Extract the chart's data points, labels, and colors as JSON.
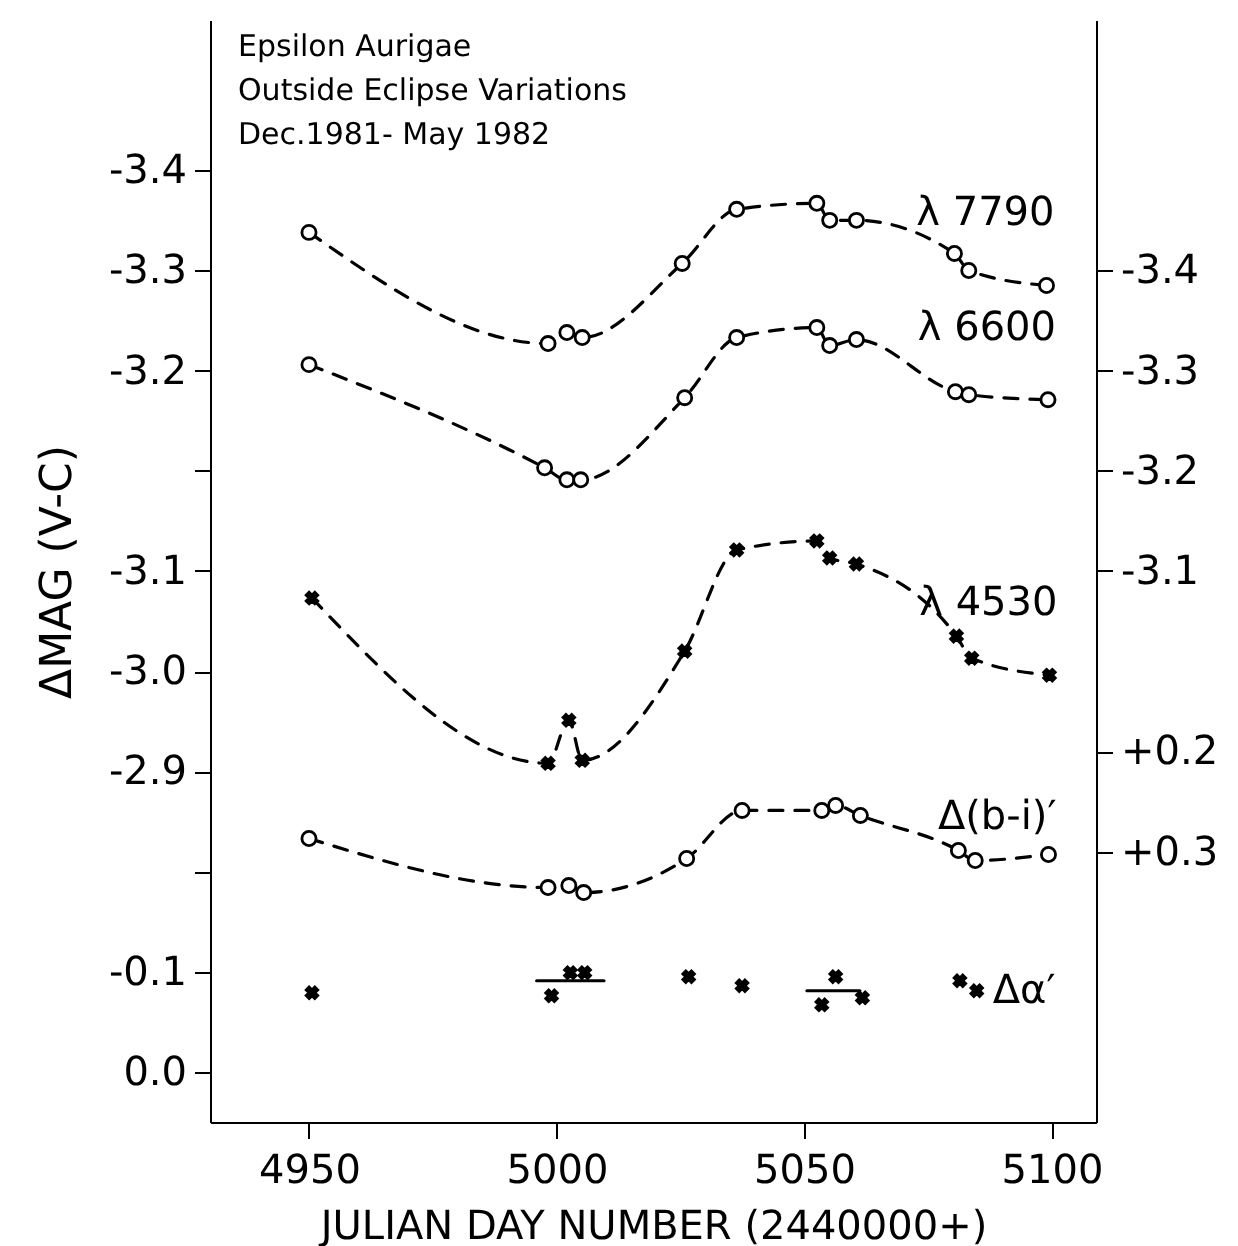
{
  "chart_data": [
    {
      "type": "line",
      "title": "Epsilon Aurigae",
      "subtitle": "Outside Eclipse Variations",
      "annotations": [
        "Dec.1981- May 1982"
      ],
      "xlabel": "JULIAN DAY NUMBER (2440000+)",
      "ylabel": "ΔMAG (V-C)",
      "xlim": [
        4930,
        5109
      ],
      "xticks": [
        4950,
        5000,
        5050,
        5100
      ],
      "ylim": [
        -2.45,
        -3.55
      ],
      "yticks": [
        -3.4,
        -3.3,
        -3.2,
        {
          "value": -3.1,
          "label": null
        }
      ],
      "y2lim": [
        -2.55,
        -3.65
      ],
      "y2ticks": [
        -3.4,
        -3.3,
        -3.2,
        -3.1
      ],
      "y3lim": [
        -2.55,
        -3.65
      ],
      "y3ticks": [
        -3.1,
        {
          "value": -3.0,
          "label": "-3.0"
        },
        -2.9,
        {
          "value": -2.8,
          "label": null
        }
      ],
      "marker": "circle",
      "line_style": "dashed",
      "series": [
        {
          "name": "λ 7790",
          "color": "#000000",
          "x": [
            4950,
            4998.3,
            5002.1,
            5005.2,
            5025.4,
            5036.4,
            5052.6,
            5055.2,
            5060.6,
            5080.4,
            5083.3,
            5099
          ],
          "values": [
            -3.338,
            -3.227,
            -3.238,
            -3.233,
            -3.307,
            -3.361,
            -3.367,
            -3.35,
            -3.35,
            -3.317,
            -3.3,
            -3.285
          ]
        },
        {
          "name": "λ 6600",
          "axis": "y2",
          "color": "#000000",
          "x": [
            4950,
            4997.6,
            5002.1,
            5004.9,
            5025.9,
            5036.4,
            5052.6,
            5055.2,
            5060.6,
            5080.6,
            5083.3,
            5099.3
          ],
          "values": [
            -3.306,
            -3.203,
            -3.191,
            -3.191,
            -3.273,
            -3.333,
            -3.343,
            -3.325,
            -3.331,
            -3.279,
            -3.276,
            -3.271
          ]
        },
        {
          "name": "λ 4530",
          "axis": "y3",
          "color": "#000000",
          "marker": "cross",
          "x": [
            4950.6,
            4998.3,
            5002.5,
            5005.2,
            5025.9,
            5036.4,
            5052.6,
            5055.2,
            5060.6,
            5080.8,
            5083.9,
            5099.6
          ],
          "values": [
            -3.073,
            -2.908,
            -2.951,
            -2.911,
            -3.02,
            -3.121,
            -3.13,
            -3.113,
            -3.107,
            -3.035,
            -3.013,
            -2.996
          ]
        }
      ]
    },
    {
      "type": "line",
      "tick_labels": "y",
      "xlim": [
        4930,
        5109
      ],
      "ylim": [
        0.05,
        -1.05
      ],
      "yticks": [
        -0.1,
        {
          "value": 0,
          "label": "0.0"
        }
      ],
      "y2lim": [
        0.57,
        -0.53
      ],
      "y2ticks": [
        {
          "value": 0.2,
          "label": "+0.2"
        },
        {
          "value": 0.3,
          "label": "+0.3"
        }
      ],
      "series": [
        {
          "name": "Δ(b-i)′",
          "axis": "y2",
          "color": "#000000",
          "marker": "circle",
          "line_style": "dashed",
          "x": [
            4950,
            4998.3,
            5002.5,
            5005.5,
            5026.3,
            5037.5,
            5053.6,
            5056.4,
            5061.4,
            5081.2,
            5084.6,
            5099.4
          ],
          "values": [
            0.287,
            0.336,
            0.334,
            0.341,
            0.307,
            0.259,
            0.259,
            0.254,
            0.264,
            0.299,
            0.309,
            0.303
          ]
        },
        {
          "name": "Δα′",
          "type": "scatter",
          "color": "#000000",
          "marker": "cross",
          "x": [
            4950.6,
            4999,
            5002.8,
            5005.7,
            5026.7,
            5037.5,
            5053.6,
            5056.4,
            5061.8,
            5081.5,
            5084.9
          ],
          "values": [
            -0.079,
            -0.076,
            -0.099,
            -0.099,
            -0.095,
            -0.086,
            -0.067,
            -0.095,
            -0.074,
            -0.091,
            -0.081
          ]
        },
        {
          "color": "#000000",
          "line_style": "solid",
          "x": [
            4996,
            5009.6
          ],
          "values": [
            -0.091,
            -0.091
          ]
        },
        {
          "color": "#000000",
          "line_style": "solid",
          "x": [
            5050.6,
            5061.3
          ],
          "values": [
            -0.081,
            -0.081
          ]
        }
      ]
    }
  ]
}
